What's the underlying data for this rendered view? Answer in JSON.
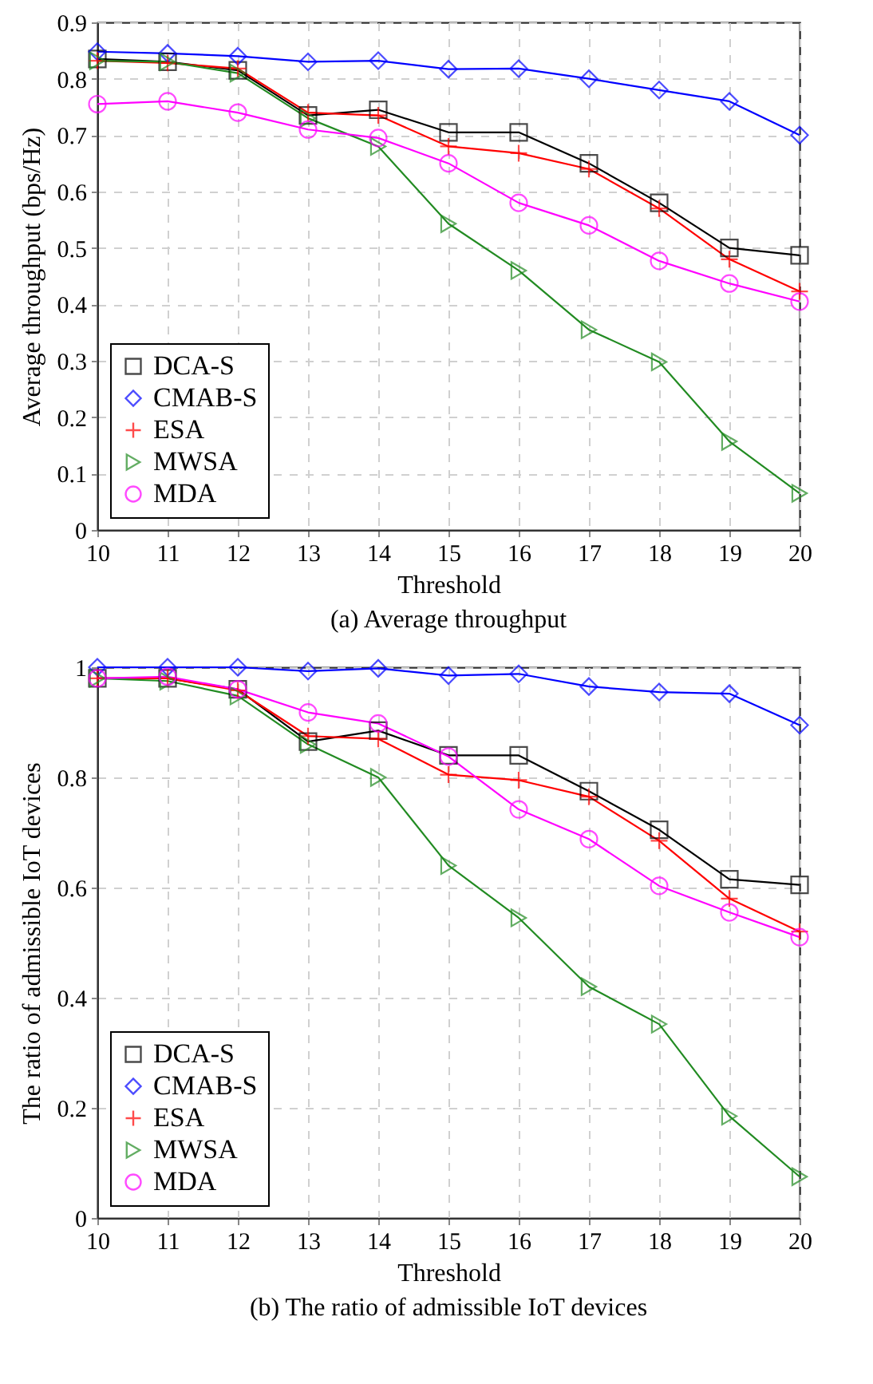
{
  "chart_data": [
    {
      "type": "line",
      "xlabel": "Threshold",
      "ylabel": "Average throughput (bps/Hz)",
      "annotations": [
        "(a)  Average throughput"
      ],
      "x": [
        10,
        11,
        12,
        13,
        14,
        15,
        16,
        17,
        18,
        19,
        20
      ],
      "xlim": [
        10,
        20
      ],
      "xticks": [
        10,
        11,
        12,
        13,
        14,
        15,
        16,
        17,
        18,
        19,
        20
      ],
      "ylim": [
        0,
        0.9
      ],
      "yticks": [
        0,
        0.1,
        0.2,
        0.3,
        0.4,
        0.5,
        0.6,
        0.7,
        0.8,
        0.9
      ],
      "grid": true,
      "legend": "bottom left",
      "line_style": "solid",
      "series": [
        {
          "name": "DCA-S",
          "color": "#000000",
          "marker": "square",
          "values": [
            0.835,
            0.83,
            0.815,
            0.735,
            0.745,
            0.705,
            0.705,
            0.65,
            0.58,
            0.5,
            0.487
          ]
        },
        {
          "name": "CMAB-S",
          "color": "#0000ff",
          "marker": "diamond",
          "values": [
            0.848,
            0.845,
            0.84,
            0.83,
            0.832,
            0.817,
            0.818,
            0.8,
            0.78,
            0.76,
            0.7
          ]
        },
        {
          "name": "ESA",
          "color": "#ff0000",
          "marker": "cross",
          "values": [
            0.832,
            0.828,
            0.818,
            0.74,
            0.735,
            0.68,
            0.668,
            0.64,
            0.57,
            0.48,
            0.423
          ]
        },
        {
          "name": "MWSA",
          "color": "#228b22",
          "marker": "triangle",
          "values": [
            0.832,
            0.83,
            0.81,
            0.73,
            0.68,
            0.543,
            0.46,
            0.355,
            0.298,
            0.157,
            0.065
          ]
        },
        {
          "name": "MDA",
          "color": "#ff00ff",
          "marker": "circle",
          "values": [
            0.755,
            0.76,
            0.74,
            0.71,
            0.695,
            0.65,
            0.58,
            0.54,
            0.477,
            0.437,
            0.405
          ]
        }
      ]
    },
    {
      "type": "line",
      "xlabel": "Threshold",
      "ylabel": "The ratio of admissible IoT devices",
      "annotations": [
        "(b)  The ratio of admissible IoT devices"
      ],
      "x": [
        10,
        11,
        12,
        13,
        14,
        15,
        16,
        17,
        18,
        19,
        20
      ],
      "xlim": [
        10,
        20
      ],
      "xticks": [
        10,
        11,
        12,
        13,
        14,
        15,
        16,
        17,
        18,
        19,
        20
      ],
      "ylim": [
        0,
        1
      ],
      "yticks": [
        0,
        0.2,
        0.4,
        0.6,
        0.8,
        1
      ],
      "grid": true,
      "legend": "bottom left",
      "line_style": "solid",
      "series": [
        {
          "name": "DCA-S",
          "color": "#000000",
          "marker": "square",
          "values": [
            0.98,
            0.98,
            0.96,
            0.865,
            0.885,
            0.84,
            0.84,
            0.775,
            0.705,
            0.615,
            0.605
          ]
        },
        {
          "name": "CMAB-S",
          "color": "#0000ff",
          "marker": "diamond",
          "values": [
            1.0,
            1.0,
            1.0,
            0.993,
            0.998,
            0.985,
            0.988,
            0.965,
            0.955,
            0.952,
            0.895
          ]
        },
        {
          "name": "ESA",
          "color": "#ff0000",
          "marker": "cross",
          "values": [
            0.98,
            0.98,
            0.958,
            0.875,
            0.87,
            0.805,
            0.795,
            0.765,
            0.685,
            0.58,
            0.52
          ]
        },
        {
          "name": "MWSA",
          "color": "#228b22",
          "marker": "triangle",
          "values": [
            0.98,
            0.975,
            0.948,
            0.86,
            0.8,
            0.64,
            0.545,
            0.42,
            0.352,
            0.185,
            0.075
          ]
        },
        {
          "name": "MDA",
          "color": "#ff00ff",
          "marker": "circle",
          "values": [
            0.98,
            0.983,
            0.96,
            0.918,
            0.898,
            0.838,
            0.742,
            0.688,
            0.603,
            0.555,
            0.51
          ]
        }
      ]
    }
  ]
}
